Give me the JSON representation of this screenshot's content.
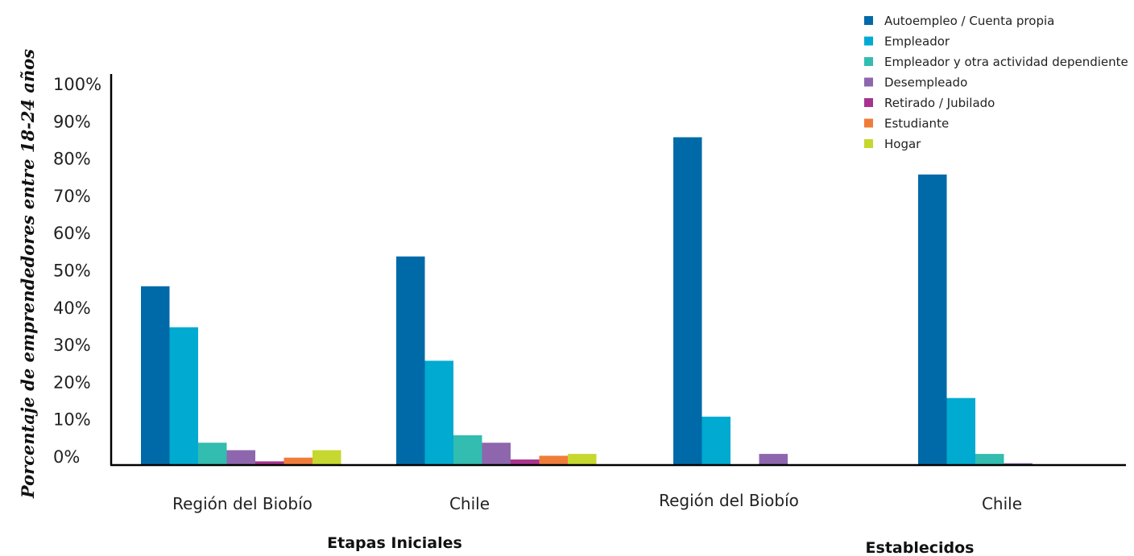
{
  "chart_data": {
    "type": "bar",
    "ylabel": "Porcentaje de emprendedores entre 18-24 años",
    "yticks": [
      "0%",
      "10%",
      "20%",
      "30%",
      "40%",
      "50%",
      "60%",
      "70%",
      "80%",
      "90%",
      "100%"
    ],
    "ylim": [
      0,
      100
    ],
    "categories": [
      "Región del Biobío",
      "Chile",
      "Región del Biobío",
      "Chile"
    ],
    "groups": [
      {
        "label": "Etapas Iniciales",
        "categories": [
          0,
          1
        ]
      },
      {
        "label": "Establecidos",
        "categories": [
          2,
          3
        ]
      }
    ],
    "series": [
      {
        "name": "Autoempleo / Cuenta propia",
        "color": "#006aa8",
        "values": [
          48,
          56,
          88,
          78
        ]
      },
      {
        "name": "Empleador",
        "color": "#00aad0",
        "values": [
          37,
          28,
          13,
          18
        ]
      },
      {
        "name": "Empleador y otra actividad dependiente",
        "color": "#33bcb0",
        "values": [
          6,
          8,
          null,
          3
        ]
      },
      {
        "name": "Desempleado",
        "color": "#8e66ad",
        "values": [
          4,
          6,
          3,
          0.5
        ]
      },
      {
        "name": "Retirado / Jubilado",
        "color": "#a8338f",
        "values": [
          1,
          1.5,
          null,
          null
        ]
      },
      {
        "name": "Estudiante",
        "color": "#f07c3a",
        "values": [
          2,
          2.5,
          null,
          null
        ]
      },
      {
        "name": "Hogar",
        "color": "#c6d730",
        "values": [
          4,
          3,
          null,
          null
        ]
      }
    ],
    "legend_position": "top-right",
    "grid": false
  }
}
